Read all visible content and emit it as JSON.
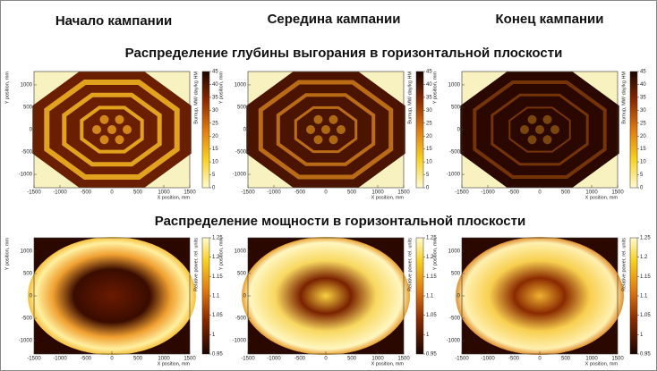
{
  "columns": [
    "Начало кампании",
    "Середина кампании",
    "Конец кампании"
  ],
  "sections": [
    {
      "title": "Распределение глубины выгорания в горизонтальной плоскости",
      "x_label": "X position, mm",
      "y_label": "Y position, mm",
      "colorbar_label": "Burnup, MW·day/kg HM",
      "xticks": [
        -1500,
        -1000,
        -500,
        0,
        500,
        1000,
        1500
      ],
      "yticks": [
        -1000,
        -500,
        0,
        500,
        1000
      ],
      "colorbar_ticks": [
        0,
        5,
        10,
        15,
        20,
        25,
        30,
        35,
        40,
        45
      ]
    },
    {
      "title": "Распределение мощности в горизонтальной плоскости",
      "x_label": "X position, mm",
      "y_label": "Y position, mm",
      "colorbar_label": "Relative power, rel. units",
      "xticks": [
        -1500,
        -1000,
        -500,
        0,
        500,
        1000,
        1500
      ],
      "yticks": [
        -1000,
        -500,
        0,
        500,
        1000
      ],
      "colorbar_ticks": [
        0.95,
        1,
        1.05,
        1.1,
        1.15,
        1.2,
        1.25
      ]
    }
  ]
}
